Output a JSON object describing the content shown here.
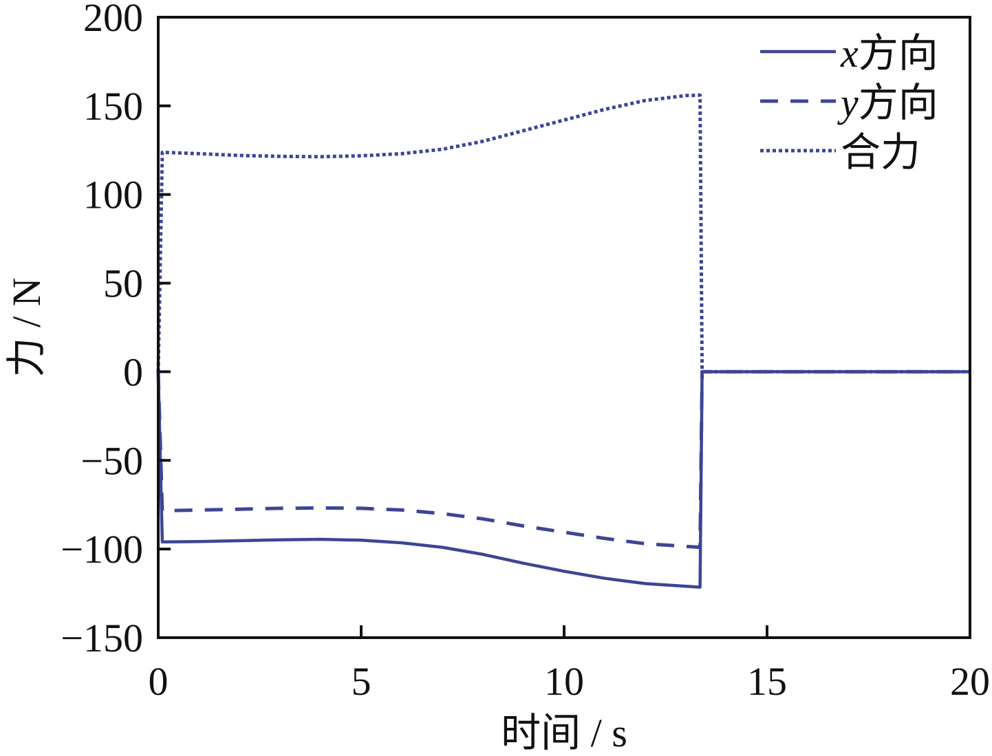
{
  "chart_data": {
    "type": "line",
    "title": "",
    "xlabel": "时间 / s",
    "ylabel": "力 / N",
    "xlim": [
      0,
      20
    ],
    "ylim": [
      -150,
      200
    ],
    "xticks": [
      "0",
      "5",
      "10",
      "15",
      "20"
    ],
    "yticks": [
      "200",
      "150",
      "100",
      "50",
      "0",
      "−50",
      "−100",
      "−150"
    ],
    "grid": false,
    "legend_position": "top-right",
    "line_color": "#3d4596",
    "x": [
      0,
      0.1,
      1,
      2,
      3,
      4,
      5,
      6,
      7,
      8,
      9,
      10,
      11,
      12,
      13,
      13.35,
      13.4,
      20
    ],
    "series": [
      {
        "name": "x方向",
        "style": "solid",
        "values": [
          0,
          -96,
          -95.8,
          -95.3,
          -94.8,
          -94.5,
          -95,
          -96.5,
          -99,
          -103,
          -108,
          -112.5,
          -116.5,
          -119.5,
          -121,
          -121.5,
          0,
          0
        ]
      },
      {
        "name": "y方向",
        "style": "dashed",
        "values": [
          0,
          -78.4,
          -78,
          -77.5,
          -77,
          -76.8,
          -77,
          -78,
          -80,
          -83,
          -87,
          -90.5,
          -94,
          -97,
          -98.5,
          -99,
          0,
          0
        ]
      },
      {
        "name": "合力",
        "style": "dotted",
        "values": [
          0,
          123.8,
          123,
          122,
          121.5,
          121.3,
          121.8,
          123,
          125.5,
          130,
          136,
          142,
          148,
          153,
          155.8,
          156,
          0,
          0
        ]
      }
    ]
  }
}
